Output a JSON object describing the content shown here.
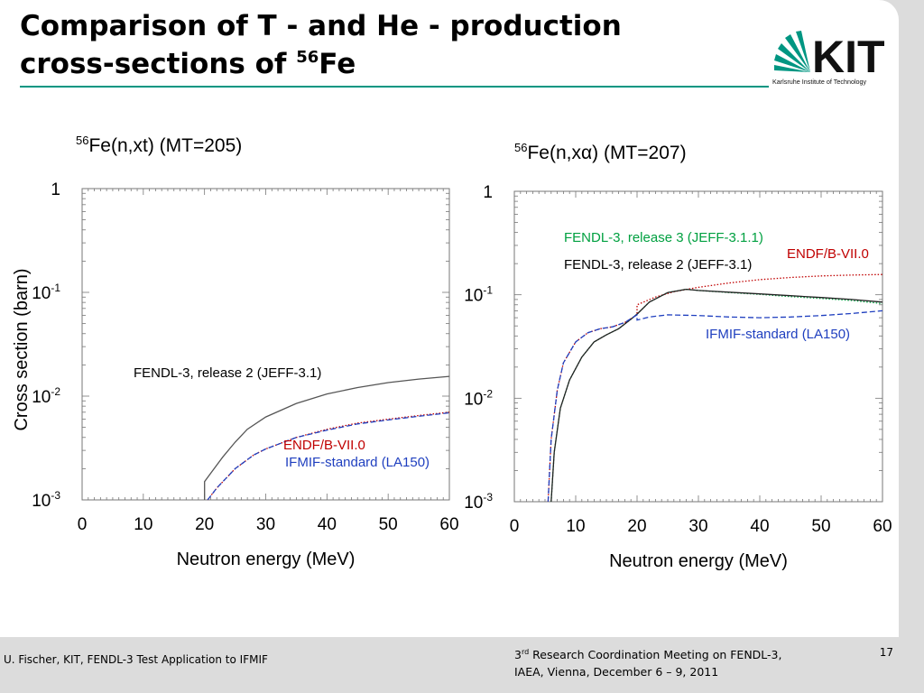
{
  "slide": {
    "title_line1": "Comparison of  T - and He - production",
    "title_line2_text": "cross-sections of ",
    "title_line2_sup": "56",
    "title_line2_end": "Fe",
    "logo_text": "KIT",
    "logo_subtitle": "Karlsruhe Institute of Technology",
    "accent_color": "#009682"
  },
  "footer": {
    "left": "U. Fischer, KIT, FENDL-3 Test Application to IFMIF",
    "meeting_sup": "rd",
    "meeting_pre": "3",
    "meeting_line1_rest": " Research Coordination Meeting on FENDL-3,",
    "meeting_line2": "IAEA, Vienna, December 6 – 9, 2011",
    "page_number": "17"
  },
  "chart_data": [
    {
      "type": "line",
      "title_sup": "56",
      "title_main": "Fe(n,xt) (MT=205)",
      "xlabel": "Neutron energy (MeV)",
      "ylabel": "Cross section (barn)",
      "xlim": [
        0,
        60
      ],
      "ylim": [
        0.001,
        1
      ],
      "yscale": "log",
      "x_ticks": [
        "0",
        "10",
        "20",
        "30",
        "40",
        "50",
        "60"
      ],
      "y_ticks": [
        {
          "base": "1",
          "exp": ""
        },
        {
          "base": "10",
          "exp": "-1"
        },
        {
          "base": "10",
          "exp": "-2"
        },
        {
          "base": "10",
          "exp": "-3"
        }
      ],
      "series": [
        {
          "name": "FENDL-3, release 2 (JEFF-3.1)",
          "color": "#555555",
          "dash": "solid",
          "points": [
            [
              20,
              0.001
            ],
            [
              20,
              0.0015
            ],
            [
              21,
              0.0018
            ],
            [
              23,
              0.0026
            ],
            [
              25,
              0.0036
            ],
            [
              27,
              0.0048
            ],
            [
              30,
              0.0063
            ],
            [
              35,
              0.0085
            ],
            [
              40,
              0.0105
            ],
            [
              45,
              0.0121
            ],
            [
              50,
              0.0135
            ],
            [
              55,
              0.0146
            ],
            [
              60,
              0.0155
            ]
          ]
        },
        {
          "name": "ENDF/B-VII.0",
          "color": "#c00000",
          "dash": "dotted",
          "points": [
            [
              20.5,
              0.001
            ],
            [
              22,
              0.0013
            ],
            [
              25,
              0.002
            ],
            [
              28,
              0.0027
            ],
            [
              30,
              0.0031
            ],
            [
              35,
              0.004
            ],
            [
              40,
              0.0048
            ],
            [
              45,
              0.0055
            ],
            [
              50,
              0.006
            ],
            [
              55,
              0.0065
            ],
            [
              60,
              0.007
            ]
          ]
        },
        {
          "name": "IFMIF-standard (LA150)",
          "color": "#1f3fbf",
          "dash": "dashed",
          "points": [
            [
              20.5,
              0.001
            ],
            [
              22,
              0.0013
            ],
            [
              25,
              0.002
            ],
            [
              28,
              0.0027
            ],
            [
              30,
              0.0031
            ],
            [
              35,
              0.004
            ],
            [
              40,
              0.0047
            ],
            [
              45,
              0.0054
            ],
            [
              50,
              0.0059
            ],
            [
              55,
              0.0064
            ],
            [
              60,
              0.0069
            ]
          ]
        }
      ]
    },
    {
      "type": "line",
      "title_sup": "56",
      "title_main": "Fe(n,xα) (MT=207)",
      "xlabel": "Neutron energy (MeV)",
      "ylabel": "",
      "xlim": [
        0,
        60
      ],
      "ylim": [
        0.001,
        1
      ],
      "yscale": "log",
      "x_ticks": [
        "0",
        "10",
        "20",
        "30",
        "40",
        "50",
        "60"
      ],
      "y_ticks": [
        {
          "base": "1",
          "exp": ""
        },
        {
          "base": "10",
          "exp": "-1"
        },
        {
          "base": "10",
          "exp": "-2"
        },
        {
          "base": "10",
          "exp": "-3"
        }
      ],
      "series": [
        {
          "name": "FENDL-3, release 3 (JEFF-3.1.1)",
          "color": "#00a040",
          "dash": "dotted",
          "points": [
            [
              6,
              0.001
            ],
            [
              6.5,
              0.003
            ],
            [
              7.5,
              0.008
            ],
            [
              9,
              0.015
            ],
            [
              11,
              0.025
            ],
            [
              13,
              0.035
            ],
            [
              15,
              0.041
            ],
            [
              17,
              0.047
            ],
            [
              19,
              0.058
            ],
            [
              20,
              0.065
            ],
            [
              22,
              0.085
            ],
            [
              25,
              0.105
            ],
            [
              28,
              0.113
            ],
            [
              30,
              0.11
            ],
            [
              35,
              0.105
            ],
            [
              40,
              0.101
            ],
            [
              45,
              0.096
            ],
            [
              50,
              0.092
            ],
            [
              55,
              0.088
            ],
            [
              60,
              0.082
            ]
          ]
        },
        {
          "name": "ENDF/B-VII.0",
          "color": "#c00000",
          "dash": "dotted",
          "points": [
            [
              5.5,
              0.001
            ],
            [
              6,
              0.004
            ],
            [
              7,
              0.012
            ],
            [
              8,
              0.022
            ],
            [
              10,
              0.035
            ],
            [
              12,
              0.043
            ],
            [
              14,
              0.047
            ],
            [
              16,
              0.049
            ],
            [
              18,
              0.054
            ],
            [
              20,
              0.064
            ],
            [
              20,
              0.08
            ],
            [
              23,
              0.095
            ],
            [
              26,
              0.107
            ],
            [
              30,
              0.118
            ],
            [
              35,
              0.13
            ],
            [
              40,
              0.14
            ],
            [
              45,
              0.147
            ],
            [
              50,
              0.152
            ],
            [
              55,
              0.155
            ],
            [
              60,
              0.157
            ]
          ]
        },
        {
          "name": "FENDL-3, release 2 (JEFF-3.1)",
          "color": "#222222",
          "dash": "solid",
          "points": [
            [
              6,
              0.001
            ],
            [
              6.5,
              0.003
            ],
            [
              7.5,
              0.008
            ],
            [
              9,
              0.015
            ],
            [
              11,
              0.025
            ],
            [
              13,
              0.035
            ],
            [
              15,
              0.041
            ],
            [
              17,
              0.047
            ],
            [
              19,
              0.058
            ],
            [
              20,
              0.065
            ],
            [
              22,
              0.085
            ],
            [
              25,
              0.105
            ],
            [
              28,
              0.113
            ],
            [
              30,
              0.11
            ],
            [
              35,
              0.106
            ],
            [
              40,
              0.102
            ],
            [
              45,
              0.098
            ],
            [
              50,
              0.094
            ],
            [
              55,
              0.09
            ],
            [
              60,
              0.085
            ]
          ]
        },
        {
          "name": "IFMIF-standard (LA150)",
          "color": "#1f3fbf",
          "dash": "dashed",
          "points": [
            [
              5.5,
              0.001
            ],
            [
              6,
              0.004
            ],
            [
              7,
              0.012
            ],
            [
              8,
              0.022
            ],
            [
              10,
              0.035
            ],
            [
              12,
              0.043
            ],
            [
              14,
              0.047
            ],
            [
              16,
              0.049
            ],
            [
              18,
              0.054
            ],
            [
              20,
              0.064
            ],
            [
              20,
              0.057
            ],
            [
              22,
              0.061
            ],
            [
              25,
              0.064
            ],
            [
              30,
              0.063
            ],
            [
              35,
              0.061
            ],
            [
              40,
              0.06
            ],
            [
              45,
              0.061
            ],
            [
              50,
              0.063
            ],
            [
              55,
              0.066
            ],
            [
              60,
              0.07
            ]
          ]
        }
      ],
      "annotations": [
        {
          "text": "FENDL-3, release 3 (JEFF-3.1.1)",
          "color": "#00a040"
        },
        {
          "text": "ENDF/B-VII.0",
          "color": "#c00000"
        },
        {
          "text": "FENDL-3, release 2 (JEFF-3.1)",
          "color": "#000000"
        },
        {
          "text": "IFMIF-standard (LA150)",
          "color": "#1f3fbf"
        }
      ]
    }
  ]
}
